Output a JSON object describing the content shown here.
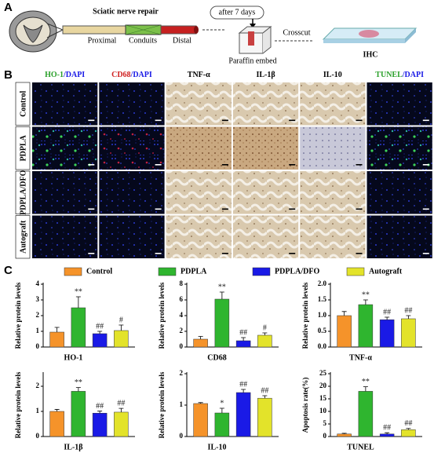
{
  "panel_a": {
    "label": "A",
    "title": "Sciatic nerve repair",
    "proximal": "Proximal",
    "conduits": "Conduits",
    "distal": "Distal",
    "after": "after 7 days",
    "embed": "Paraffin embed",
    "crosscut": "Crosscut",
    "ihc": "IHC"
  },
  "panel_b": {
    "label": "B",
    "columns": [
      [
        "HO-1",
        "/DAPI"
      ],
      [
        "CD68",
        "/DAPI"
      ],
      [
        "TNF-α"
      ],
      [
        "IL-1β"
      ],
      [
        "IL-10"
      ],
      [
        "TUNEL",
        "/DAPI"
      ]
    ],
    "rows": [
      "Control",
      "PDPLA",
      "PDPLA/DFO",
      "Autograft"
    ]
  },
  "panel_c": {
    "label": "C"
  },
  "legend": {
    "labels": [
      "Control",
      "PDPLA",
      "PDPLA/DFO",
      "Autograft"
    ],
    "colors": [
      "#f5932a",
      "#2fb52f",
      "#1a1ae6",
      "#e3e32a"
    ]
  },
  "chart_data": [
    {
      "type": "bar",
      "xlabel": "HO-1",
      "ylabel": "Relative protein levels",
      "ylim": [
        0,
        4
      ],
      "yticks": [
        0,
        1,
        2,
        3,
        4
      ],
      "values": [
        0.95,
        2.5,
        0.85,
        1.05
      ],
      "errors": [
        0.3,
        0.7,
        0.15,
        0.35
      ],
      "annotations": [
        null,
        "**",
        "##",
        "#"
      ]
    },
    {
      "type": "bar",
      "xlabel": "CD68",
      "ylabel": "Relative protein levels",
      "ylim": [
        0,
        8
      ],
      "yticks": [
        0,
        2,
        4,
        6,
        8
      ],
      "values": [
        1.0,
        6.1,
        0.8,
        1.5
      ],
      "errors": [
        0.35,
        0.9,
        0.4,
        0.3
      ],
      "annotations": [
        null,
        "**",
        "##",
        "#"
      ]
    },
    {
      "type": "bar",
      "xlabel": "TNF-α",
      "ylabel": "Relative protein  levels",
      "ylim": [
        0,
        2
      ],
      "yticks": [
        {
          "value": 0,
          "label": "0.0"
        },
        {
          "value": 0.5,
          "label": "0.5"
        },
        {
          "value": 1,
          "label": "1.0"
        },
        {
          "value": 1.5,
          "label": "1.5"
        },
        {
          "value": 2,
          "label": "2.0"
        }
      ],
      "values": [
        1.0,
        1.35,
        0.87,
        0.9
      ],
      "errors": [
        0.13,
        0.15,
        0.08,
        0.1
      ],
      "annotations": [
        null,
        "**",
        "##",
        "##"
      ]
    },
    {
      "type": "bar",
      "xlabel": "IL-1β",
      "ylabel": "Relative protein  levels",
      "ylim": [
        0,
        2.5
      ],
      "yticks": [
        0,
        1,
        2
      ],
      "values": [
        1.0,
        1.8,
        0.93,
        0.97
      ],
      "errors": [
        0.08,
        0.15,
        0.08,
        0.15
      ],
      "annotations": [
        null,
        "**",
        "##",
        "##"
      ]
    },
    {
      "type": "bar",
      "xlabel": "IL-10",
      "ylabel": "Relative protein levels",
      "ylim": [
        0,
        2
      ],
      "yticks": [
        0,
        1,
        2
      ],
      "values": [
        1.05,
        0.75,
        1.4,
        1.22
      ],
      "errors": [
        0.03,
        0.15,
        0.1,
        0.08
      ],
      "annotations": [
        null,
        "*",
        "##",
        "##"
      ]
    },
    {
      "type": "bar",
      "xlabel": "TUNEL",
      "ylabel": "Apoptosis rate(%)",
      "ylim": [
        0,
        25
      ],
      "yticks": [
        0,
        5,
        10,
        15,
        20,
        25
      ],
      "values": [
        1,
        18,
        1,
        2.7
      ],
      "errors": [
        0.3,
        1.8,
        0.5,
        0.5
      ],
      "annotations": [
        null,
        "**",
        "##",
        "##"
      ]
    }
  ]
}
